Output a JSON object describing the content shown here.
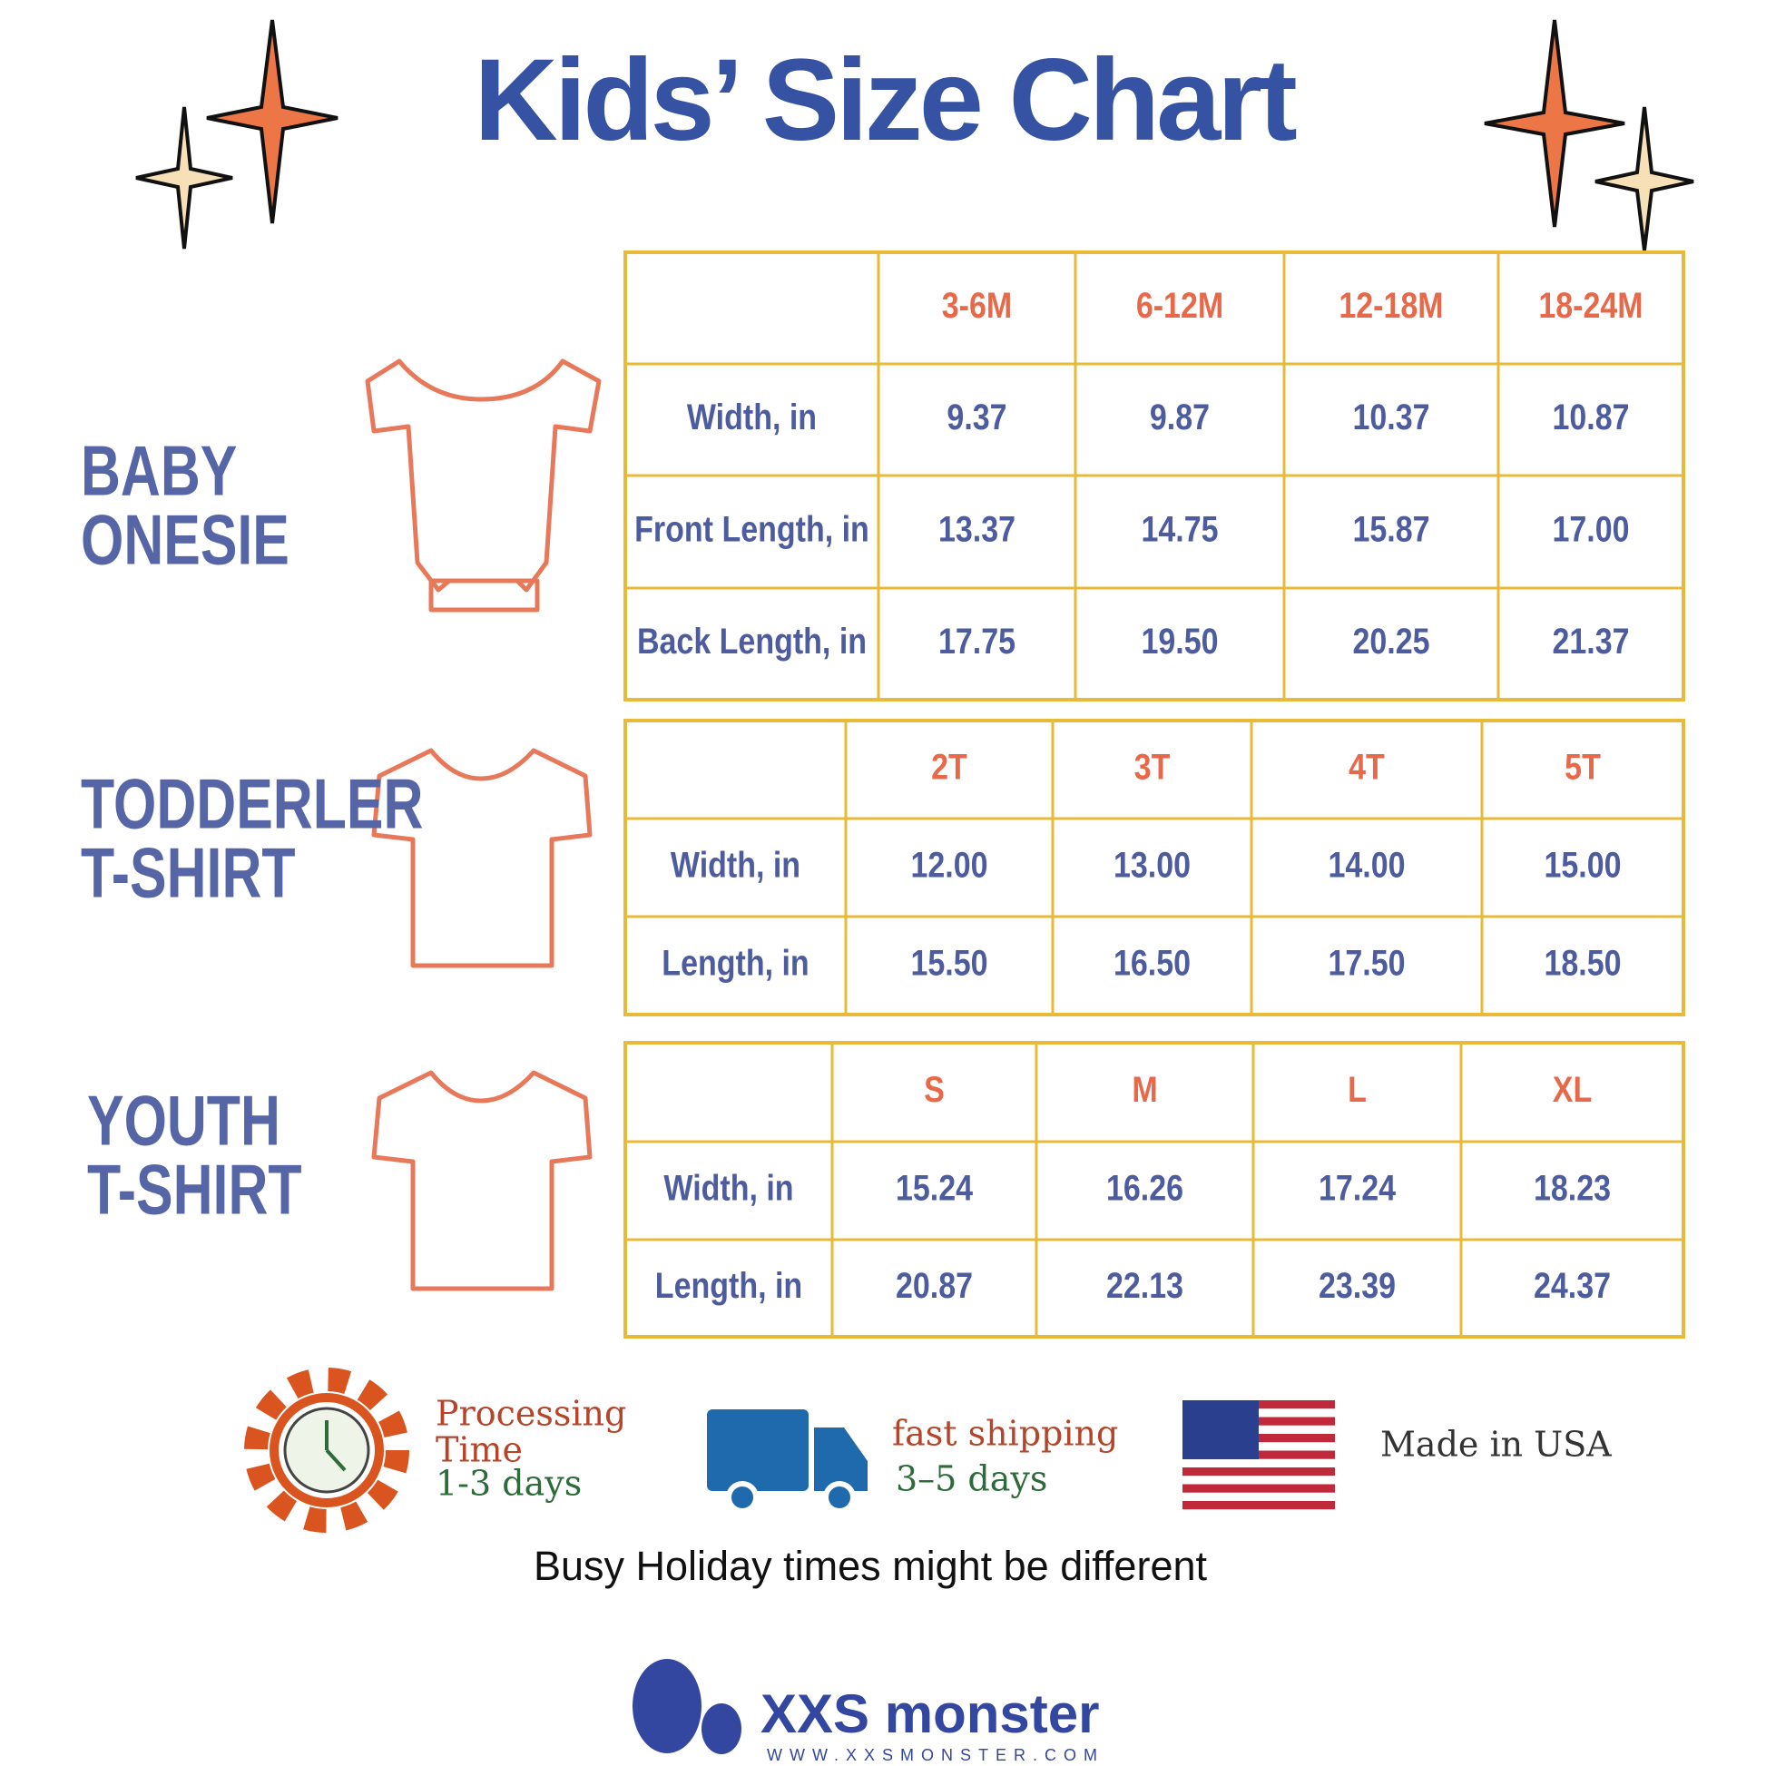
{
  "title": "Kids’ Size Chart",
  "tables": [
    {
      "label": [
        "BABY",
        "ONESIE"
      ],
      "header": [
        "3-6M",
        "6-12M",
        "12-18M",
        "18-24M"
      ],
      "rows": [
        [
          "Width, in",
          "9.37",
          "9.87",
          "10.37",
          "10.87"
        ],
        [
          "Front Length, in",
          "13.37",
          "14.75",
          "15.87",
          "17.00"
        ],
        [
          "Back Length, in",
          "17.75",
          "19.50",
          "20.25",
          "21.37"
        ]
      ]
    },
    {
      "label": [
        "TODDERLER",
        "T-SHIRT"
      ],
      "header": [
        "2T",
        "3T",
        "4T",
        "5T"
      ],
      "rows": [
        [
          "Width, in",
          "12.00",
          "13.00",
          "14.00",
          "15.00"
        ],
        [
          "Length, in",
          "15.50",
          "16.50",
          "17.50",
          "18.50"
        ]
      ]
    },
    {
      "label": [
        "YOUTH",
        "T-SHIRT"
      ],
      "header": [
        "S",
        "M",
        "L",
        "XL"
      ],
      "rows": [
        [
          "Width, in",
          "15.24",
          "16.26",
          "17.24",
          "18.23"
        ],
        [
          "Length, in",
          "20.87",
          "22.13",
          "23.39",
          "24.37"
        ]
      ]
    }
  ],
  "processing": [
    "Processing",
    "Time",
    "1-3 days"
  ],
  "shipping": [
    "fast shipping",
    "3–5 days"
  ],
  "made_in": "Made in USA",
  "note": "Busy Holiday times might be different",
  "brand": "XXS monster",
  "url": "WWW.XXSMONSTER.COM"
}
